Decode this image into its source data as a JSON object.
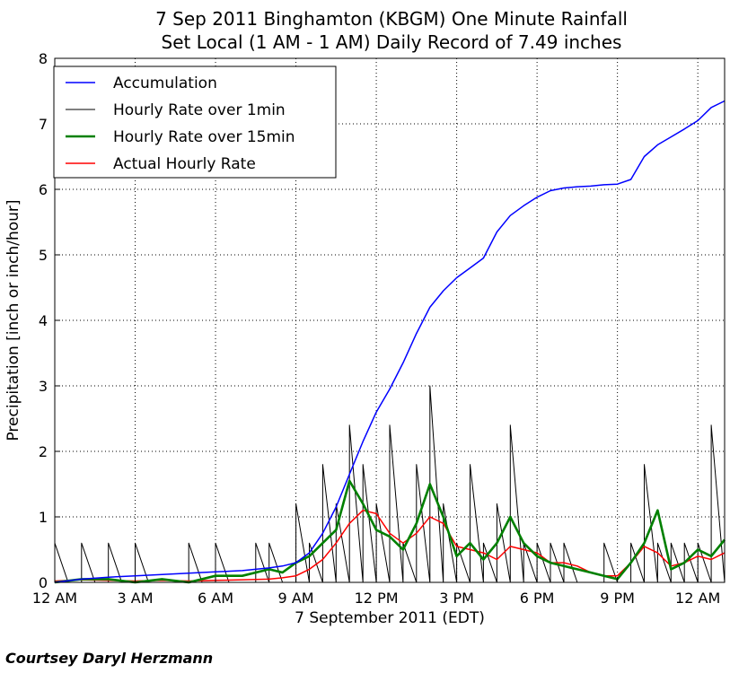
{
  "chart_data": {
    "type": "line",
    "title_line1": "7 Sep 2011 Binghamton (KBGM) One Minute Rainfall",
    "title_line2": "Set Local (1 AM - 1 AM) Daily Record of 7.49 inches",
    "xlabel": "7 September 2011 (EDT)",
    "ylabel": "Precipitation [inch or inch/hour]",
    "x_unit": "hours after 12 AM",
    "xlim": [
      0,
      25
    ],
    "ylim": [
      0,
      8
    ],
    "x_ticks": [
      {
        "x": 0,
        "label": "12 AM"
      },
      {
        "x": 3,
        "label": "3 AM"
      },
      {
        "x": 6,
        "label": "6 AM"
      },
      {
        "x": 9,
        "label": "9 AM"
      },
      {
        "x": 12,
        "label": "12 PM"
      },
      {
        "x": 15,
        "label": "3 PM"
      },
      {
        "x": 18,
        "label": "6 PM"
      },
      {
        "x": 21,
        "label": "9 PM"
      },
      {
        "x": 24,
        "label": "12 AM"
      }
    ],
    "y_ticks": [
      0,
      1,
      2,
      3,
      4,
      5,
      6,
      7,
      8
    ],
    "grid": true,
    "legend_position": "top-left",
    "series": [
      {
        "name": "Accumulation",
        "color": "#0000ff",
        "x": [
          0,
          1,
          2,
          3,
          4,
          5,
          6,
          7,
          8,
          8.5,
          9,
          9.5,
          10,
          10.5,
          11,
          11.5,
          12,
          12.5,
          13,
          13.5,
          14,
          14.5,
          15,
          15.5,
          16,
          16.5,
          17,
          17.5,
          18,
          18.5,
          19,
          19.5,
          20,
          20.5,
          21,
          21.5,
          22,
          22.5,
          23,
          23.5,
          24,
          24.5,
          25
        ],
        "y": [
          0,
          0.05,
          0.08,
          0.1,
          0.12,
          0.14,
          0.16,
          0.18,
          0.22,
          0.25,
          0.3,
          0.45,
          0.75,
          1.15,
          1.65,
          2.15,
          2.6,
          2.95,
          3.35,
          3.8,
          4.2,
          4.45,
          4.65,
          4.8,
          4.95,
          5.35,
          5.6,
          5.75,
          5.88,
          5.98,
          6.02,
          6.04,
          6.05,
          6.07,
          6.08,
          6.15,
          6.5,
          6.68,
          6.8,
          6.92,
          7.05,
          7.25,
          7.35
        ]
      },
      {
        "name": "Hourly Rate over 1min",
        "color": "#000000",
        "x": [
          0,
          0.5,
          1,
          1.5,
          2,
          2.5,
          3,
          3.5,
          4,
          4.5,
          5,
          5.5,
          6,
          6.5,
          7,
          7.5,
          8,
          8.5,
          9,
          9.5,
          10,
          10.5,
          11,
          11.5,
          12,
          12.5,
          13,
          13.5,
          14,
          14.5,
          15,
          15.5,
          16,
          16.5,
          17,
          17.5,
          18,
          18.5,
          19,
          19.5,
          20,
          20.5,
          21,
          21.5,
          22,
          22.5,
          23,
          23.5,
          24,
          24.5,
          25
        ],
        "y": [
          0.6,
          0,
          0.6,
          0,
          0.6,
          0,
          0.6,
          0,
          0,
          0,
          0.6,
          0,
          0.6,
          0,
          0,
          0.6,
          0.6,
          0,
          1.2,
          0.6,
          1.8,
          1.2,
          2.4,
          1.8,
          1.2,
          2.4,
          0.6,
          1.8,
          3.0,
          1.2,
          0.6,
          1.8,
          0.6,
          1.2,
          2.4,
          0.6,
          0.6,
          0.6,
          0.6,
          0,
          0,
          0.6,
          0,
          0.6,
          1.8,
          0.6,
          0.6,
          0.6,
          0.6,
          2.4,
          0.6
        ]
      },
      {
        "name": "Hourly Rate over 15min",
        "color": "#008000",
        "x": [
          0,
          1,
          2,
          3,
          4,
          5,
          6,
          7,
          8,
          8.5,
          9,
          9.5,
          10,
          10.5,
          11,
          11.5,
          12,
          12.5,
          13,
          13.5,
          14,
          14.5,
          15,
          15.5,
          16,
          16.5,
          17,
          17.5,
          18,
          18.5,
          19,
          19.5,
          20,
          20.5,
          21,
          21.5,
          22,
          22.5,
          23,
          23.5,
          24,
          24.5,
          25
        ],
        "y": [
          0,
          0.05,
          0.05,
          0,
          0.05,
          0,
          0.1,
          0.1,
          0.2,
          0.15,
          0.3,
          0.4,
          0.6,
          0.8,
          1.55,
          1.2,
          0.8,
          0.7,
          0.5,
          0.9,
          1.5,
          1.0,
          0.4,
          0.6,
          0.35,
          0.6,
          1.0,
          0.6,
          0.4,
          0.3,
          0.25,
          0.2,
          0.15,
          0.1,
          0.05,
          0.3,
          0.6,
          1.1,
          0.2,
          0.3,
          0.5,
          0.4,
          0.65
        ]
      },
      {
        "name": "Actual Hourly Rate",
        "color": "#ff0000",
        "x": [
          0,
          1,
          2,
          3,
          4,
          5,
          6,
          7,
          8,
          8.5,
          9,
          9.5,
          10,
          10.5,
          11,
          11.5,
          12,
          12.5,
          13,
          13.5,
          14,
          14.5,
          15,
          15.5,
          16,
          16.5,
          17,
          17.5,
          18,
          18.5,
          19,
          19.5,
          20,
          20.5,
          21,
          21.5,
          22,
          22.5,
          23,
          23.5,
          24,
          24.5,
          25
        ],
        "y": [
          0.02,
          0.04,
          0.03,
          0.02,
          0.03,
          0.02,
          0.03,
          0.04,
          0.05,
          0.07,
          0.1,
          0.2,
          0.35,
          0.6,
          0.9,
          1.1,
          1.05,
          0.75,
          0.6,
          0.75,
          1.0,
          0.9,
          0.55,
          0.5,
          0.45,
          0.35,
          0.55,
          0.5,
          0.45,
          0.3,
          0.3,
          0.25,
          0.15,
          0.1,
          0.1,
          0.3,
          0.55,
          0.45,
          0.25,
          0.3,
          0.4,
          0.35,
          0.45
        ]
      }
    ]
  },
  "credit": "Courtsey Daryl Herzmann"
}
